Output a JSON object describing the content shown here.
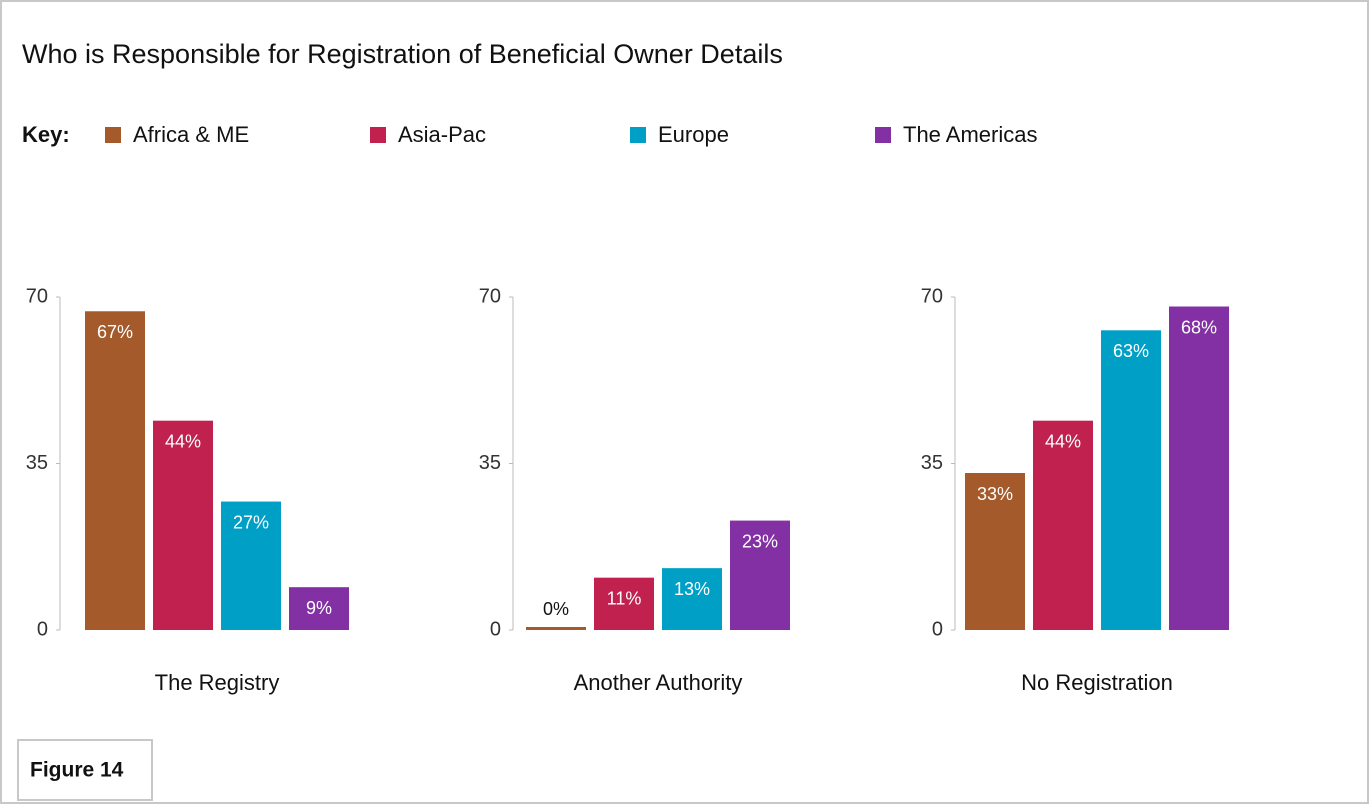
{
  "chart_data": {
    "type": "bar",
    "title": "Who is Responsible for Registration of Beneficial Owner Details",
    "legend_title": "Key:",
    "categories": [
      "The Registry",
      "Another Authority",
      "No Registration"
    ],
    "series": [
      {
        "name": "Africa & ME",
        "color": "#a45a2a",
        "values": [
          67,
          0,
          33
        ],
        "value_labels": [
          "67%",
          "0%",
          "33%"
        ]
      },
      {
        "name": "Asia-Pac",
        "color": "#c0214f",
        "values": [
          44,
          11,
          44
        ],
        "value_labels": [
          "44%",
          "11%",
          "44%"
        ]
      },
      {
        "name": "Europe",
        "color": "#00a0c6",
        "values": [
          27,
          13,
          63
        ],
        "value_labels": [
          "27%",
          "13%",
          "63%"
        ]
      },
      {
        "name": "The Americas",
        "color": "#8230a3",
        "values": [
          9,
          23,
          68
        ],
        "value_labels": [
          "9%",
          "23%",
          "68%"
        ]
      }
    ],
    "ylim": [
      0,
      70
    ],
    "yticks": [
      0,
      35,
      70
    ]
  },
  "figure_label": "Figure 14"
}
